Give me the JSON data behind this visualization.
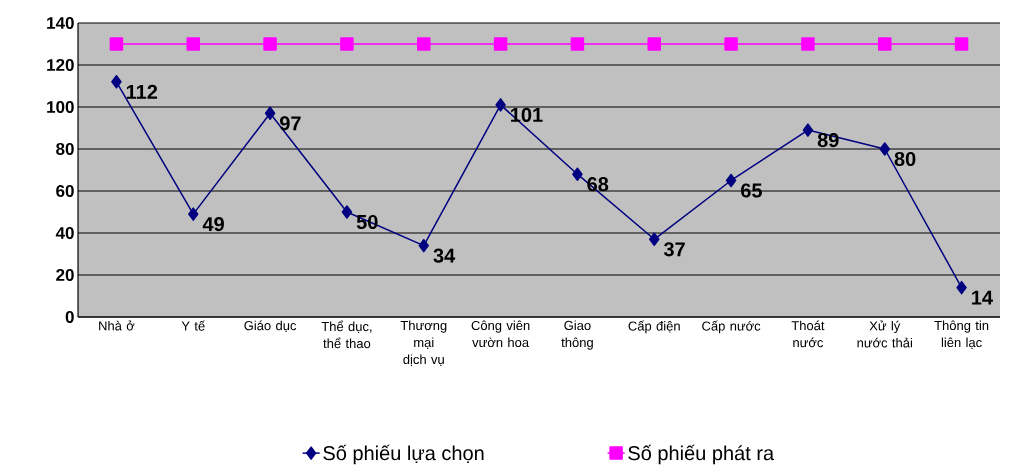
{
  "chart_data": {
    "type": "line",
    "categories": [
      "Nhà ở",
      "Y tế",
      "Giáo dục",
      "Thể dục, thể thao",
      "Thương mại dịch vụ",
      "Công viên vườn hoa",
      "Giao thông",
      "Cấp điện",
      "Cấp nước",
      "Thoát nước",
      "Xử lý nước thải",
      "Thông tin liên lạc"
    ],
    "series": [
      {
        "name": "Số phiếu lựa chọn",
        "color": "#000080",
        "marker": "diamond",
        "values": [
          112,
          49,
          97,
          50,
          34,
          101,
          68,
          37,
          65,
          89,
          80,
          14
        ],
        "value_labels": [
          "112",
          "49",
          "97",
          "50",
          "34",
          "101",
          "68",
          "37",
          "65",
          "89",
          "80",
          "14"
        ]
      },
      {
        "name": "Số phiếu phát ra",
        "color": "#ff00ff",
        "marker": "square",
        "values": [
          130,
          130,
          130,
          130,
          130,
          130,
          130,
          130,
          130,
          130,
          130,
          130
        ]
      }
    ],
    "ylim": [
      0,
      140
    ],
    "yticks": [
      0,
      20,
      40,
      60,
      80,
      100,
      120,
      140
    ],
    "grid": "y",
    "legend": "bottom"
  }
}
